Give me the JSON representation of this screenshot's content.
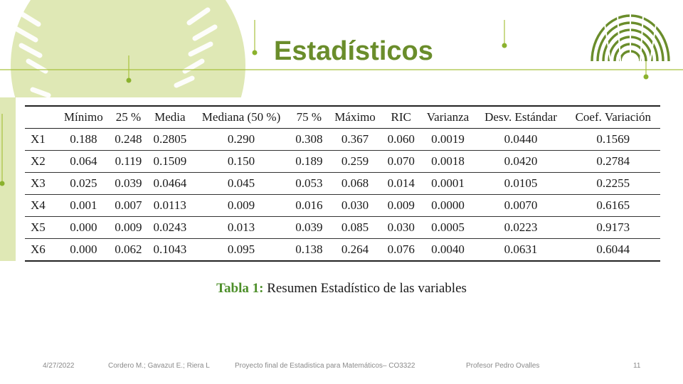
{
  "slide": {
    "title": "Estadísticos",
    "slide_number": "11"
  },
  "colors": {
    "accent_green": "#6a8d2b",
    "light_green": "#dfe8b5",
    "caption_green": "#4d8f2a"
  },
  "table": {
    "headers": [
      "",
      "Mínimo",
      "25 %",
      "Media",
      "Mediana (50 %)",
      "75 %",
      "Máximo",
      "RIC",
      "Varianza",
      "Desv. Estándar",
      "Coef. Variación"
    ],
    "rows": [
      [
        "X1",
        "0.188",
        "0.248",
        "0.2805",
        "0.290",
        "0.308",
        "0.367",
        "0.060",
        "0.0019",
        "0.0440",
        "0.1569"
      ],
      [
        "X2",
        "0.064",
        "0.119",
        "0.1509",
        "0.150",
        "0.189",
        "0.259",
        "0.070",
        "0.0018",
        "0.0420",
        "0.2784"
      ],
      [
        "X3",
        "0.025",
        "0.039",
        "0.0464",
        "0.045",
        "0.053",
        "0.068",
        "0.014",
        "0.0001",
        "0.0105",
        "0.2255"
      ],
      [
        "X4",
        "0.001",
        "0.007",
        "0.0113",
        "0.009",
        "0.016",
        "0.030",
        "0.009",
        "0.0000",
        "0.0070",
        "0.6165"
      ],
      [
        "X5",
        "0.000",
        "0.009",
        "0.0243",
        "0.013",
        "0.039",
        "0.085",
        "0.030",
        "0.0005",
        "0.0223",
        "0.9173"
      ],
      [
        "X6",
        "0.000",
        "0.062",
        "0.1043",
        "0.095",
        "0.138",
        "0.264",
        "0.076",
        "0.0040",
        "0.0631",
        "0.6044"
      ]
    ]
  },
  "caption": {
    "label": "Tabla 1:",
    "text": " Resumen Estadístico de las variables"
  },
  "footer": {
    "date": "4/27/2022",
    "authors": "Cordero M.; Gavazut E.;  Riera L",
    "project": "Proyecto final de Estadistica para Matemáticos– CO3322",
    "professor": "Profesor Pedro Ovalles"
  }
}
